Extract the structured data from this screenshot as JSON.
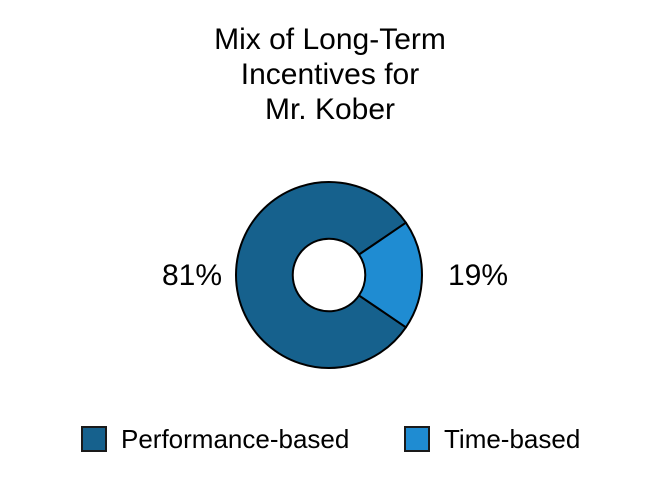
{
  "title": {
    "lines": [
      "Mix of Long-Term",
      "Incentives for",
      "Mr. Kober"
    ]
  },
  "chart_data": {
    "type": "pie",
    "variant": "donut",
    "title": "Mix of Long-Term Incentives for Mr. Kober",
    "categories": [
      "Performance-based",
      "Time-based"
    ],
    "values": [
      81,
      19
    ],
    "value_labels": [
      "81%",
      "19%"
    ],
    "unit": "percent",
    "colors": [
      "#16618D",
      "#1F8CD2"
    ],
    "edge_color": "#000000",
    "edge_width": 2,
    "start_angle_deg": 34.2,
    "direction": "clockwise",
    "donut_hole_ratio": 0.39,
    "hole_color": "#ffffff",
    "legend_position": "bottom"
  }
}
